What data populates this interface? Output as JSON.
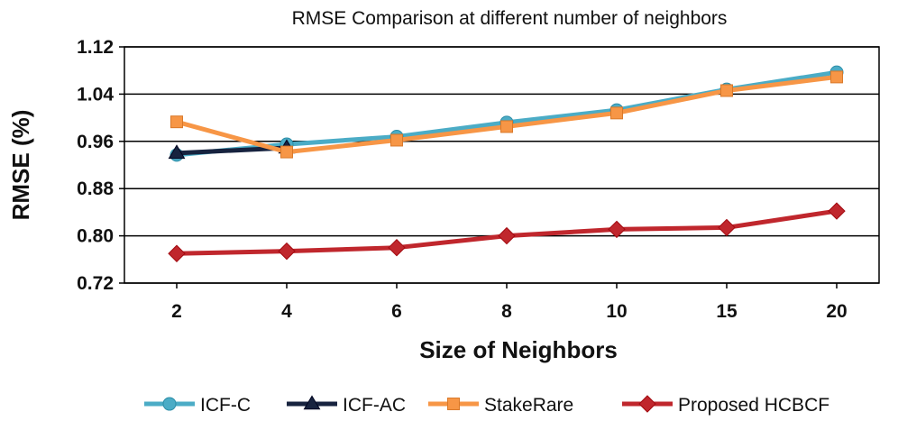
{
  "chart_data": {
    "type": "line",
    "title": "RMSE Comparison  at different  number  of neighbors",
    "xlabel": "Size of Neighbors",
    "ylabel": "RMSE (%)",
    "categories": [
      "2",
      "4",
      "6",
      "8",
      "10",
      "15",
      "20"
    ],
    "ylim": [
      0.72,
      1.12
    ],
    "yticks": [
      "0.72",
      "0.80",
      "0.88",
      "0.96",
      "1.04",
      "1.12"
    ],
    "grid": "horizontal",
    "legend_position": "bottom",
    "series": [
      {
        "name": "ICF-C",
        "color": "#4BACC6",
        "marker": "circle",
        "values": [
          0.937,
          0.955,
          0.968,
          0.992,
          1.013,
          1.048,
          1.077
        ]
      },
      {
        "name": "ICF-AC",
        "color": "#17233F",
        "marker": "triangle",
        "values": [
          0.94,
          0.949,
          null,
          null,
          null,
          null,
          null
        ]
      },
      {
        "name": "StakeRare",
        "color": "#F79646",
        "marker": "square",
        "values": [
          0.993,
          0.942,
          0.962,
          0.985,
          1.008,
          1.046,
          1.069
        ]
      },
      {
        "name": "Proposed HCBCF",
        "color": "#C0272D",
        "marker": "diamond",
        "values": [
          0.77,
          0.774,
          0.78,
          0.8,
          0.811,
          0.814,
          0.842
        ]
      }
    ]
  }
}
